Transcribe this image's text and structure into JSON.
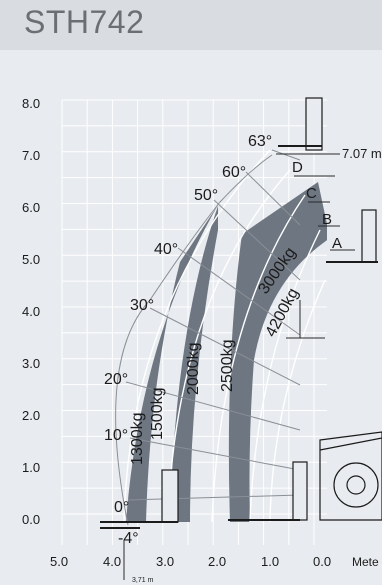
{
  "header": {
    "title": "STH742"
  },
  "chart_data": {
    "type": "load-chart",
    "y_ticks": [
      "8.0",
      "7.0",
      "6.0",
      "5.0",
      "4.0",
      "3.0",
      "2.0",
      "1.0",
      "0.0"
    ],
    "x_ticks": [
      "5.0",
      "4.0",
      "3.0",
      "2.0",
      "1.0",
      "0.0"
    ],
    "x_unit_label": "Mete",
    "xlim": [
      5.0,
      -1.0
    ],
    "ylim": [
      -0.6,
      8.0
    ],
    "angle_labels": [
      "-4°",
      "0°",
      "10°",
      "20°",
      "30°",
      "40°",
      "50°",
      "60°",
      "63°"
    ],
    "extension_letters": [
      "A",
      "B",
      "C",
      "D"
    ],
    "load_zones": [
      {
        "label": "1300kg"
      },
      {
        "label": "1500kg"
      },
      {
        "label": "2000kg"
      },
      {
        "label": "2500kg"
      },
      {
        "label": "3000kg"
      },
      {
        "label": "4200kg"
      }
    ],
    "max_height_label": "7.07 m",
    "min_reach_label": "3,71 m",
    "colors": {
      "zone": "#6e7682",
      "grid": "#ffffff",
      "text": "#1b1b1b"
    }
  }
}
